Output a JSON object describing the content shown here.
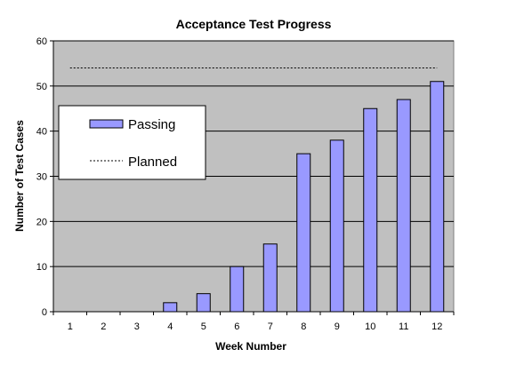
{
  "chart_data": {
    "type": "bar",
    "title": "Acceptance Test Progress",
    "xlabel": "Week Number",
    "ylabel": "Number of Test Cases",
    "categories": [
      "1",
      "2",
      "3",
      "4",
      "5",
      "6",
      "7",
      "8",
      "9",
      "10",
      "11",
      "12"
    ],
    "series": [
      {
        "name": "Passing",
        "kind": "bar",
        "values": [
          0,
          0,
          0,
          2,
          4,
          10,
          15,
          35,
          38,
          45,
          47,
          51
        ],
        "color": "#9999ff"
      },
      {
        "name": "Planned",
        "kind": "line",
        "style": "dotted",
        "values": [
          54,
          54,
          54,
          54,
          54,
          54,
          54,
          54,
          54,
          54,
          54,
          54
        ],
        "color": "#000000"
      }
    ],
    "ylim": [
      0,
      60
    ],
    "yticks": [
      "0",
      "10",
      "20",
      "30",
      "40",
      "50",
      "60"
    ],
    "grid": true,
    "legend_position": "upper-left",
    "colors": {
      "plot_background": "#c0c0c0",
      "bar_fill": "#9999ff",
      "bar_stroke": "#000000",
      "gridline": "#000000"
    }
  }
}
